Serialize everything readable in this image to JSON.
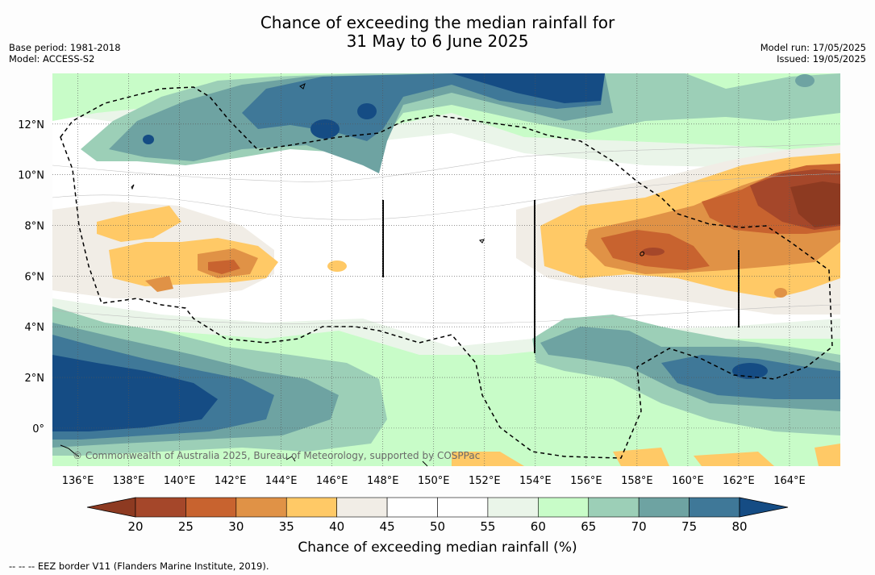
{
  "title_line1": "Chance of exceeding the median rainfall for",
  "title_line2": "31 May to 6 June 2025",
  "meta_left": {
    "base_period": "Base period: 1981-2018",
    "model": "Model: ACCESS-S2"
  },
  "meta_right": {
    "model_run": "Model run: 17/05/2025",
    "issued": "Issued: 19/05/2025"
  },
  "watermark": "© Commonwealth of Australia 2025, Bureau of Meteorology, supported by COSPPac",
  "map": {
    "lon_ticks": [
      "136°E",
      "138°E",
      "140°E",
      "142°E",
      "144°E",
      "146°E",
      "148°E",
      "150°E",
      "152°E",
      "154°E",
      "156°E",
      "158°E",
      "160°E",
      "162°E",
      "164°E"
    ],
    "lon_values": [
      136,
      138,
      140,
      142,
      144,
      146,
      148,
      150,
      152,
      154,
      156,
      158,
      160,
      162,
      164
    ],
    "lat_ticks": [
      "12°N",
      "10°N",
      "8°N",
      "6°N",
      "4°N",
      "2°N",
      "0°"
    ],
    "lat_values": [
      12,
      10,
      8,
      6,
      4,
      2,
      0
    ],
    "lon_range": [
      135,
      166
    ],
    "lat_range": [
      -1.5,
      14
    ],
    "grid": true
  },
  "colorbar": {
    "label": "Chance of exceeding median rainfall (%)",
    "ticks": [
      "20",
      "25",
      "30",
      "35",
      "40",
      "45",
      "50",
      "55",
      "60",
      "65",
      "70",
      "75",
      "80"
    ],
    "colors": [
      "#a5472a",
      "#c8632f",
      "#e09246",
      "#ffc966",
      "#f1ede6",
      "#ffffff",
      "#ffffff",
      "#eaf5e9",
      "#c8fcc8",
      "#9ccfb7",
      "#6ea3a2",
      "#3f7898",
      "#154c84"
    ],
    "under_color": "#8d3a21",
    "over_color": "#154c84"
  },
  "credit": "--  --  -- EEZ border V11 (Flanders Marine Institute, 2019)."
}
